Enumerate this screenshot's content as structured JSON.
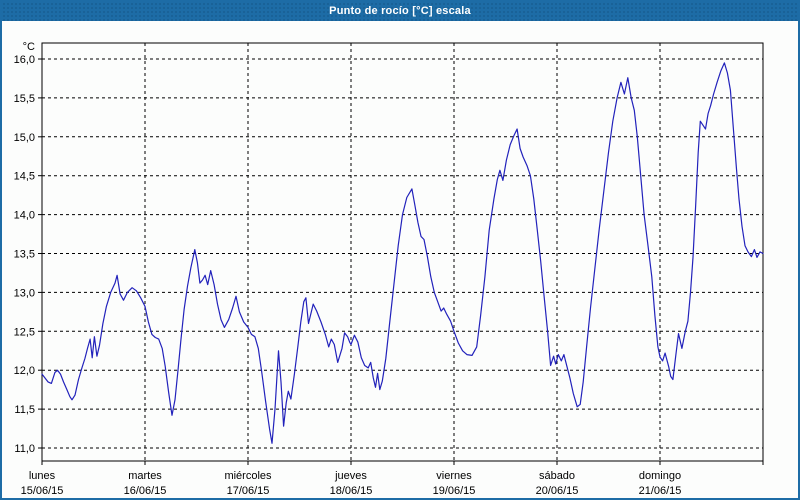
{
  "window": {
    "title": "Punto de rocío [°C] escala"
  },
  "chart": {
    "unit_label": "°C",
    "y_ticks": [
      {
        "value": 16.0,
        "label": "16,0"
      },
      {
        "value": 15.5,
        "label": "15,5"
      },
      {
        "value": 15.0,
        "label": "15,0"
      },
      {
        "value": 14.5,
        "label": "14,5"
      },
      {
        "value": 14.0,
        "label": "14,0"
      },
      {
        "value": 13.5,
        "label": "13,5"
      },
      {
        "value": 13.0,
        "label": "13,0"
      },
      {
        "value": 12.5,
        "label": "12,5"
      },
      {
        "value": 12.0,
        "label": "12,0"
      },
      {
        "value": 11.5,
        "label": "11,5"
      },
      {
        "value": 11.0,
        "label": "11,0"
      }
    ],
    "x_days": [
      {
        "name": "lunes",
        "date": "15/06/15"
      },
      {
        "name": "martes",
        "date": "16/06/15"
      },
      {
        "name": "miércoles",
        "date": "17/06/15"
      },
      {
        "name": "jueves",
        "date": "18/06/15"
      },
      {
        "name": "viernes",
        "date": "19/06/15"
      },
      {
        "name": "sábado",
        "date": "20/06/15"
      },
      {
        "name": "domingo",
        "date": "21/06/15"
      }
    ]
  },
  "chart_data": {
    "type": "line",
    "title": "Punto de rocío [°C] escala",
    "ylabel": "°C",
    "ylim": [
      11.0,
      16.0
    ],
    "xlim_hours": [
      0,
      168
    ],
    "x_unit": "hours from lunes 15/06/15 00:00 to 22/06/15 00:00",
    "grid": true,
    "legend": "none",
    "line_color": "#2222bb",
    "series": [
      {
        "name": "Punto de rocío",
        "points": [
          [
            0,
            11.95
          ],
          [
            0.7,
            11.9
          ],
          [
            1.4,
            11.85
          ],
          [
            2.2,
            11.83
          ],
          [
            3,
            11.97
          ],
          [
            3.6,
            12.0
          ],
          [
            4.3,
            11.95
          ],
          [
            5,
            11.85
          ],
          [
            5.8,
            11.75
          ],
          [
            6.5,
            11.66
          ],
          [
            7,
            11.62
          ],
          [
            7.7,
            11.68
          ],
          [
            8.5,
            11.88
          ],
          [
            9.3,
            12.03
          ],
          [
            10,
            12.15
          ],
          [
            10.6,
            12.28
          ],
          [
            11.2,
            12.4
          ],
          [
            11.7,
            12.16
          ],
          [
            12.2,
            12.43
          ],
          [
            12.8,
            12.18
          ],
          [
            13.4,
            12.32
          ],
          [
            14.2,
            12.6
          ],
          [
            15,
            12.82
          ],
          [
            16,
            13.0
          ],
          [
            17,
            13.12
          ],
          [
            17.5,
            13.22
          ],
          [
            18.2,
            12.98
          ],
          [
            19,
            12.9
          ],
          [
            19.9,
            13.0
          ],
          [
            21,
            13.06
          ],
          [
            22,
            13.02
          ],
          [
            23,
            12.93
          ],
          [
            24,
            12.82
          ],
          [
            24.8,
            12.62
          ],
          [
            25.6,
            12.46
          ],
          [
            26.4,
            12.42
          ],
          [
            27.2,
            12.4
          ],
          [
            28,
            12.28
          ],
          [
            28.7,
            12.05
          ],
          [
            29.5,
            11.72
          ],
          [
            30.3,
            11.42
          ],
          [
            31,
            11.62
          ],
          [
            31.7,
            12.0
          ],
          [
            32.4,
            12.4
          ],
          [
            33.1,
            12.78
          ],
          [
            33.9,
            13.08
          ],
          [
            34.7,
            13.32
          ],
          [
            35.6,
            13.55
          ],
          [
            36.2,
            13.38
          ],
          [
            36.8,
            13.12
          ],
          [
            37.4,
            13.16
          ],
          [
            38,
            13.22
          ],
          [
            38.6,
            13.1
          ],
          [
            39.3,
            13.28
          ],
          [
            40.1,
            13.1
          ],
          [
            40.9,
            12.85
          ],
          [
            41.7,
            12.65
          ],
          [
            42.5,
            12.55
          ],
          [
            43.5,
            12.65
          ],
          [
            44.4,
            12.8
          ],
          [
            45.2,
            12.95
          ],
          [
            46,
            12.75
          ],
          [
            47,
            12.62
          ],
          [
            48,
            12.55
          ],
          [
            48.8,
            12.46
          ],
          [
            49.6,
            12.43
          ],
          [
            50.4,
            12.28
          ],
          [
            51.2,
            11.98
          ],
          [
            52.1,
            11.6
          ],
          [
            53,
            11.25
          ],
          [
            53.6,
            11.06
          ],
          [
            54.3,
            11.5
          ],
          [
            55.1,
            12.25
          ],
          [
            55.7,
            11.85
          ],
          [
            56.3,
            11.28
          ],
          [
            56.9,
            11.58
          ],
          [
            57.4,
            11.73
          ],
          [
            58,
            11.63
          ],
          [
            58.8,
            11.95
          ],
          [
            59.6,
            12.3
          ],
          [
            60.3,
            12.62
          ],
          [
            61,
            12.88
          ],
          [
            61.5,
            12.93
          ],
          [
            62.1,
            12.6
          ],
          [
            63.2,
            12.85
          ],
          [
            64,
            12.76
          ],
          [
            65,
            12.62
          ],
          [
            66,
            12.46
          ],
          [
            66.8,
            12.3
          ],
          [
            67.4,
            12.4
          ],
          [
            68.1,
            12.33
          ],
          [
            68.9,
            12.1
          ],
          [
            69.9,
            12.28
          ],
          [
            70.5,
            12.48
          ],
          [
            71.2,
            12.43
          ],
          [
            71.7,
            12.36
          ],
          [
            72,
            12.33
          ],
          [
            72.8,
            12.45
          ],
          [
            73.6,
            12.36
          ],
          [
            74.4,
            12.16
          ],
          [
            75.2,
            12.06
          ],
          [
            76,
            12.03
          ],
          [
            76.6,
            12.1
          ],
          [
            77.2,
            11.9
          ],
          [
            77.7,
            11.78
          ],
          [
            78.2,
            11.96
          ],
          [
            78.7,
            11.75
          ],
          [
            79.3,
            11.86
          ],
          [
            80.1,
            12.15
          ],
          [
            81,
            12.6
          ],
          [
            82,
            13.1
          ],
          [
            83,
            13.6
          ],
          [
            84,
            14.0
          ],
          [
            85,
            14.22
          ],
          [
            86.2,
            14.33
          ],
          [
            86.9,
            14.12
          ],
          [
            87.6,
            13.9
          ],
          [
            88.3,
            13.72
          ],
          [
            89,
            13.68
          ],
          [
            89.8,
            13.46
          ],
          [
            90.6,
            13.2
          ],
          [
            91.4,
            13.0
          ],
          [
            92.2,
            12.88
          ],
          [
            93,
            12.76
          ],
          [
            93.6,
            12.8
          ],
          [
            94.3,
            12.72
          ],
          [
            95.2,
            12.63
          ],
          [
            96,
            12.5
          ],
          [
            97,
            12.35
          ],
          [
            98,
            12.25
          ],
          [
            99,
            12.2
          ],
          [
            100.2,
            12.19
          ],
          [
            101.3,
            12.3
          ],
          [
            102.2,
            12.7
          ],
          [
            103.2,
            13.2
          ],
          [
            104.2,
            13.8
          ],
          [
            105.3,
            14.2
          ],
          [
            106.1,
            14.45
          ],
          [
            106.7,
            14.57
          ],
          [
            107.4,
            14.44
          ],
          [
            108.2,
            14.7
          ],
          [
            109.1,
            14.9
          ],
          [
            110,
            15.02
          ],
          [
            110.7,
            15.1
          ],
          [
            111.4,
            14.85
          ],
          [
            112.1,
            14.74
          ],
          [
            113,
            14.63
          ],
          [
            113.8,
            14.5
          ],
          [
            114.6,
            14.2
          ],
          [
            115.4,
            13.8
          ],
          [
            116.2,
            13.4
          ],
          [
            117,
            12.95
          ],
          [
            117.8,
            12.5
          ],
          [
            118.5,
            12.06
          ],
          [
            119.2,
            12.18
          ],
          [
            119.7,
            12.08
          ],
          [
            120.3,
            12.2
          ],
          [
            121,
            12.12
          ],
          [
            121.6,
            12.2
          ],
          [
            122.3,
            12.05
          ],
          [
            123,
            11.9
          ],
          [
            123.8,
            11.7
          ],
          [
            124.7,
            11.53
          ],
          [
            125.4,
            11.56
          ],
          [
            126.1,
            11.85
          ],
          [
            126.9,
            12.3
          ],
          [
            127.8,
            12.8
          ],
          [
            128.8,
            13.3
          ],
          [
            129.8,
            13.8
          ],
          [
            130.9,
            14.3
          ],
          [
            132,
            14.8
          ],
          [
            133,
            15.2
          ],
          [
            134,
            15.5
          ],
          [
            134.9,
            15.7
          ],
          [
            135.7,
            15.55
          ],
          [
            136.5,
            15.76
          ],
          [
            137.3,
            15.5
          ],
          [
            138,
            15.34
          ],
          [
            138.7,
            15.0
          ],
          [
            139.5,
            14.5
          ],
          [
            140.3,
            14.0
          ],
          [
            141.2,
            13.6
          ],
          [
            142.1,
            13.2
          ],
          [
            142.8,
            12.7
          ],
          [
            143.5,
            12.3
          ],
          [
            144,
            12.17
          ],
          [
            144.6,
            12.12
          ],
          [
            145.2,
            12.22
          ],
          [
            146,
            12.05
          ],
          [
            146.5,
            11.92
          ],
          [
            147,
            11.88
          ],
          [
            147.7,
            12.2
          ],
          [
            148.3,
            12.47
          ],
          [
            149.1,
            12.28
          ],
          [
            149.9,
            12.5
          ],
          [
            150.5,
            12.63
          ],
          [
            151.1,
            13.0
          ],
          [
            151.7,
            13.45
          ],
          [
            152.3,
            14.1
          ],
          [
            152.9,
            14.8
          ],
          [
            153.4,
            15.2
          ],
          [
            154,
            15.15
          ],
          [
            154.6,
            15.1
          ],
          [
            155.2,
            15.3
          ],
          [
            155.8,
            15.4
          ],
          [
            156.5,
            15.55
          ],
          [
            157.3,
            15.7
          ],
          [
            158.2,
            15.85
          ],
          [
            159,
            15.95
          ],
          [
            159.7,
            15.82
          ],
          [
            160.4,
            15.6
          ],
          [
            161.1,
            15.1
          ],
          [
            161.8,
            14.6
          ],
          [
            162.4,
            14.2
          ],
          [
            163.1,
            13.85
          ],
          [
            163.8,
            13.6
          ],
          [
            164.5,
            13.52
          ],
          [
            165.3,
            13.46
          ],
          [
            166,
            13.55
          ],
          [
            166.6,
            13.45
          ],
          [
            167.3,
            13.52
          ],
          [
            168,
            13.5
          ]
        ]
      }
    ]
  },
  "colors": {
    "titlebar": "#1d6ca6",
    "frame": "#1d6ca6",
    "grid": "#000000",
    "line": "#2222bb",
    "plot_bg": "#fcfdfc"
  }
}
